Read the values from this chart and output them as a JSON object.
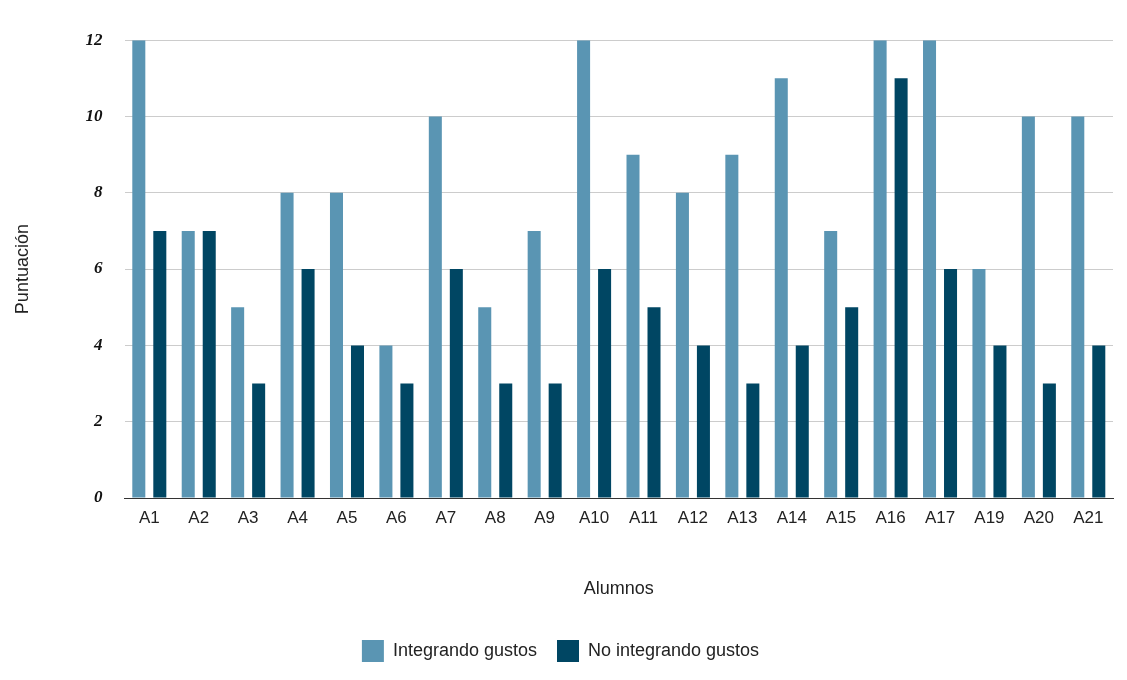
{
  "chart_data": {
    "type": "bar",
    "xlabel": "Alumnos",
    "ylabel": "Puntuación",
    "categories": [
      "A1",
      "A2",
      "A3",
      "A4",
      "A5",
      "A6",
      "A7",
      "A8",
      "A9",
      "A10",
      "A11",
      "A12",
      "A13",
      "A14",
      "A15",
      "A16",
      "A17",
      "A19",
      "A20",
      "A21"
    ],
    "series": [
      {
        "name": "Integrando gustos",
        "color": "#5a95b3",
        "values": [
          12,
          7,
          5,
          8,
          8,
          4,
          10,
          5,
          7,
          12,
          9,
          8,
          9,
          11,
          7,
          12,
          12,
          6,
          10,
          10
        ]
      },
      {
        "name": "No integrando gustos",
        "color": "#004663",
        "values": [
          7,
          7,
          3,
          6,
          4,
          3,
          6,
          3,
          3,
          6,
          5,
          4,
          3,
          4,
          5,
          11,
          6,
          4,
          3,
          4
        ]
      }
    ],
    "ylim": [
      0,
      12
    ],
    "yticks": [
      0,
      2,
      4,
      6,
      8,
      10,
      12
    ],
    "grid": "y",
    "legend": "bottom"
  }
}
